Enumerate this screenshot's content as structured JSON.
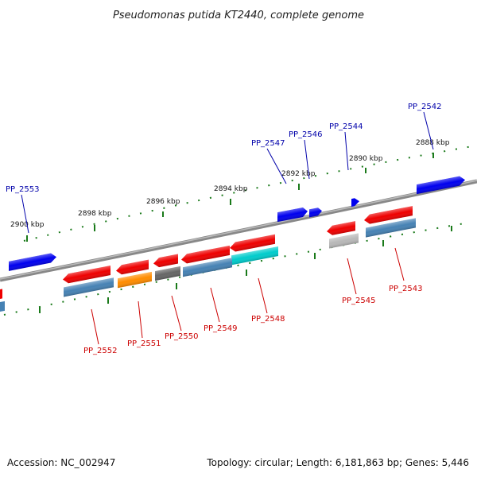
{
  "title": "Pseudomonas putida KT2440, complete genome",
  "footer": {
    "accession": "Accession: NC_002947",
    "summary": "Topology: circular; Length: 6,181,863 bp; Genes: 5,446"
  },
  "colors": {
    "backbone": "#777777",
    "tick": "#1a7a1a",
    "plus_gene": "#0000ee",
    "minus_gene": "#ee0000",
    "plus_label": "#0000aa",
    "minus_label": "#cc0000",
    "steel_blue": "#4682b4",
    "orange": "#ff8c00",
    "dark_gray": "#666666",
    "silver": "#b8b8b8",
    "cyan": "#00cccc"
  },
  "scale_labels": [
    "2888 kbp",
    "2890 kbp",
    "2892 kbp",
    "2894 kbp",
    "2896 kbp",
    "2898 kbp",
    "2900 kbp"
  ],
  "plus_genes": [
    "PP_2542",
    "PP_2544",
    "PP_2546",
    "PP_2547",
    "PP_2553"
  ],
  "minus_genes": [
    "PP_2543",
    "PP_2545",
    "PP_2548",
    "PP_2549",
    "PP_2550",
    "PP_2551",
    "PP_2552"
  ]
}
